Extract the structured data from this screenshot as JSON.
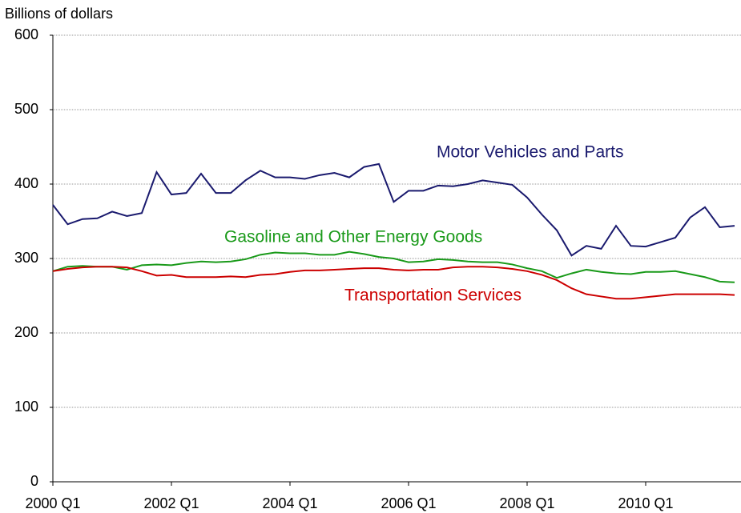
{
  "chart_data": {
    "type": "line",
    "y_axis_label": "Billions of dollars",
    "categories": [
      "2000 Q1",
      null,
      null,
      null,
      null,
      null,
      null,
      null,
      "2002 Q1",
      null,
      null,
      null,
      null,
      null,
      null,
      null,
      "2004 Q1",
      null,
      null,
      null,
      null,
      null,
      null,
      null,
      "2006 Q1",
      null,
      null,
      null,
      null,
      null,
      null,
      null,
      "2008 Q1",
      null,
      null,
      null,
      null,
      null,
      null,
      null,
      "2010 Q1",
      null,
      null,
      null,
      null,
      null,
      null
    ],
    "series": [
      {
        "name": "Motor Vehicles and Parts",
        "color": "#1a1a6e",
        "values": [
          372,
          346,
          353,
          354,
          363,
          357,
          361,
          416,
          386,
          388,
          414,
          388,
          388,
          405,
          418,
          409,
          409,
          407,
          412,
          415,
          409,
          423,
          427,
          376,
          391,
          391,
          398,
          397,
          400,
          405,
          402,
          399,
          382,
          359,
          338,
          304,
          317,
          313,
          344,
          317,
          316,
          322,
          328,
          355,
          369,
          342,
          344
        ]
      },
      {
        "name": "Gasoline and Other Energy Goods",
        "color": "#1a9a1a",
        "values": [
          283,
          289,
          290,
          289,
          289,
          285,
          291,
          292,
          291,
          294,
          296,
          295,
          296,
          299,
          305,
          308,
          307,
          307,
          305,
          305,
          309,
          306,
          302,
          300,
          295,
          296,
          299,
          298,
          296,
          295,
          295,
          292,
          287,
          283,
          274,
          280,
          285,
          282,
          280,
          279,
          282,
          282,
          283,
          279,
          275,
          269,
          268
        ]
      },
      {
        "name": "Transportation Services",
        "color": "#cc0000",
        "values": [
          283,
          286,
          288,
          289,
          289,
          288,
          283,
          277,
          278,
          275,
          275,
          275,
          276,
          275,
          278,
          279,
          282,
          284,
          284,
          285,
          286,
          287,
          287,
          285,
          284,
          285,
          285,
          288,
          289,
          289,
          288,
          286,
          283,
          278,
          271,
          260,
          252,
          249,
          246,
          246,
          248,
          250,
          252,
          252,
          252,
          252,
          251
        ]
      }
    ],
    "ylim": [
      0,
      600
    ],
    "yticks": [
      0,
      100,
      200,
      300,
      400,
      500,
      600
    ],
    "grid": true
  }
}
